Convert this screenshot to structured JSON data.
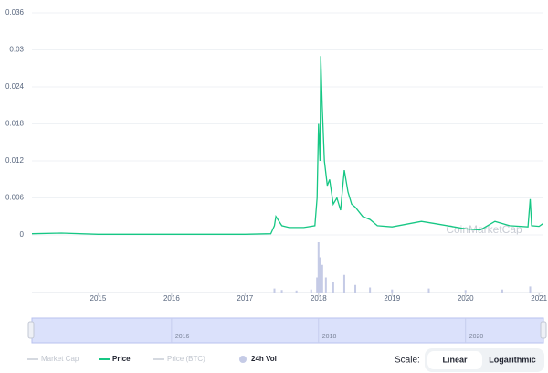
{
  "chart_data": {
    "type": "line",
    "x": [
      2014.1,
      2014.5,
      2015,
      2016,
      2017,
      2017.35,
      2017.4,
      2017.42,
      2017.5,
      2017.6,
      2017.8,
      2017.95,
      2017.98,
      2018.0,
      2018.02,
      2018.03,
      2018.05,
      2018.08,
      2018.12,
      2018.15,
      2018.2,
      2018.25,
      2018.3,
      2018.35,
      2018.4,
      2018.45,
      2018.5,
      2018.6,
      2018.7,
      2018.8,
      2019,
      2019.4,
      2019.6,
      2020,
      2020.2,
      2020.4,
      2020.6,
      2020.85,
      2020.88,
      2020.9,
      2021,
      2021.05
    ],
    "series": [
      {
        "name": "Price",
        "color": "#16c784",
        "values": [
          0.0002,
          0.0003,
          0.0001,
          0.0001,
          0.0001,
          0.0002,
          0.0015,
          0.003,
          0.0015,
          0.0012,
          0.0012,
          0.0015,
          0.006,
          0.018,
          0.012,
          0.029,
          0.021,
          0.012,
          0.008,
          0.009,
          0.005,
          0.006,
          0.004,
          0.0105,
          0.007,
          0.005,
          0.0045,
          0.003,
          0.0025,
          0.0015,
          0.0013,
          0.0022,
          0.0018,
          0.001,
          0.0008,
          0.0022,
          0.0015,
          0.0013,
          0.0058,
          0.0015,
          0.0014,
          0.0018
        ]
      }
    ],
    "volume": {
      "name": "24h Vol",
      "color": "#c5cbe6",
      "x": [
        2017.4,
        2017.5,
        2017.7,
        2017.9,
        2017.98,
        2018.0,
        2018.02,
        2018.05,
        2018.1,
        2018.2,
        2018.35,
        2018.5,
        2018.7,
        2019.0,
        2019.5,
        2020.0,
        2020.5,
        2020.88
      ],
      "values": [
        8,
        5,
        4,
        6,
        30,
        100,
        70,
        55,
        30,
        20,
        35,
        15,
        10,
        6,
        8,
        5,
        6,
        12
      ],
      "ylim": [
        0,
        100
      ]
    },
    "ylim": [
      0,
      0.036
    ],
    "yticks": [
      0,
      0.006,
      0.012,
      0.018,
      0.024,
      0.03,
      0.036
    ],
    "xlim": [
      2014.1,
      2021.06
    ],
    "xticks": [
      2015,
      2016,
      2017,
      2018,
      2019,
      2020,
      2021
    ],
    "navigator_ticks": [
      2016,
      2018,
      2020
    ],
    "grid": true,
    "watermark": "CoinMarketCap",
    "hidden_legend_items": [
      "Market Cap",
      "Price (BTC)"
    ],
    "scale_label": "Scale:",
    "scale_options": [
      "Linear",
      "Logarithmic"
    ]
  }
}
